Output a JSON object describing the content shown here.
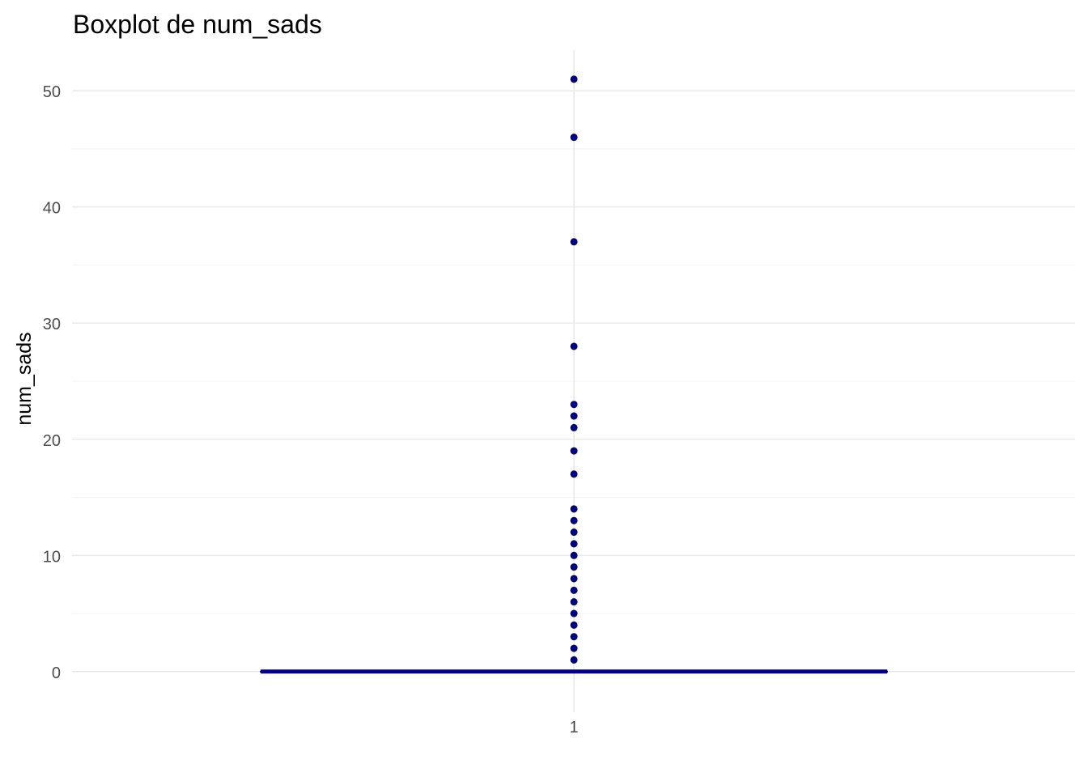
{
  "colors": {
    "box": "#00008B",
    "outlier": "#00008B",
    "grid_major": "#EBEBEB",
    "grid_minor": "#F5F5F5",
    "axis_text": "#4D4D4D",
    "title_text": "#000000"
  },
  "chart_data": {
    "type": "boxplot",
    "title": "Boxplot de num_sads",
    "xlabel": "",
    "ylabel": "num_sads",
    "categories": [
      "1"
    ],
    "ylim": [
      -3.5,
      53.5
    ],
    "y_ticks": [
      0,
      10,
      20,
      30,
      40,
      50
    ],
    "grid": true,
    "box": {
      "category": "1",
      "min": 0,
      "q1": 0,
      "median": 0,
      "q3": 0,
      "max": 0
    },
    "outliers": [
      1,
      2,
      3,
      4,
      5,
      6,
      7,
      8,
      9,
      10,
      11,
      12,
      13,
      14,
      17,
      19,
      21,
      22,
      23,
      28,
      37,
      46,
      51
    ]
  }
}
